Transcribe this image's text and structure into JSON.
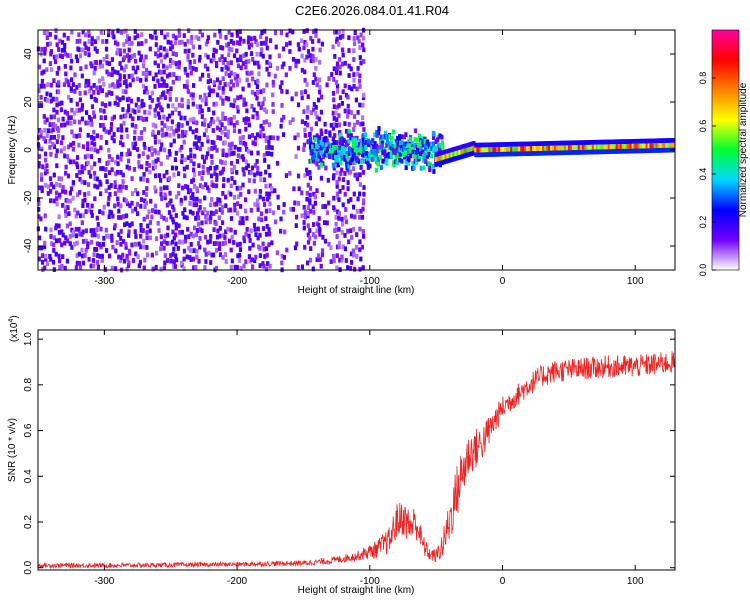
{
  "title": "C2E6.2026.084.01.41.R04",
  "chart_data": [
    {
      "type": "heatmap",
      "title": "C2E6.2026.084.01.41.R04",
      "xlabel": "Height of straight line (km)",
      "ylabel": "Frequency (Hz)",
      "xlim": [
        -350,
        130
      ],
      "ylim": [
        -50,
        50
      ],
      "xticks": [
        -300,
        -200,
        -100,
        0,
        100
      ],
      "xtick_labels": [
        "-300",
        "-200",
        "-100",
        "0",
        "100"
      ],
      "yticks": [
        -40,
        -20,
        0,
        20,
        40
      ],
      "ytick_labels": [
        "-40",
        "-20",
        "0",
        "20",
        "40"
      ],
      "colorbar": {
        "label": "Normalized spectral amplitude",
        "range": [
          0,
          1
        ],
        "ticks": [
          0.0,
          0.2,
          0.4,
          0.6,
          0.8
        ],
        "tick_labels": [
          "0.0",
          "0.2",
          "0.4",
          "0.6",
          "0.8"
        ],
        "colors": [
          "#ffffff",
          "#7000ff",
          "#0000ff",
          "#00d8ff",
          "#00ff30",
          "#ffff00",
          "#ff8000",
          "#ff0000",
          "#ff00a0"
        ]
      },
      "regions": [
        {
          "name": "noise",
          "x_range": [
            -350,
            -105
          ],
          "freq_range": [
            -50,
            50
          ],
          "amplitude": 0.12
        },
        {
          "name": "emerging-signal",
          "x_range": [
            -145,
            -45
          ],
          "freq_center": 0,
          "freq_spread": 10,
          "amplitude": 0.35
        },
        {
          "name": "carrier-transition",
          "x_range": [
            -50,
            -20
          ],
          "freq_range": [
            -4,
            1
          ],
          "amplitude": 0.8
        },
        {
          "name": "carrier",
          "x_range": [
            -20,
            130
          ],
          "freq_range": [
            0,
            2
          ],
          "amplitude": 0.9
        }
      ]
    },
    {
      "type": "line",
      "xlabel": "Height of straight line (km)",
      "ylabel": "SNR (10 * v/v)",
      "scale_label": "(x10",
      "scale_exponent": "4",
      "xlim": [
        -350,
        130
      ],
      "ylim": [
        -0.01,
        1.04
      ],
      "xticks": [
        -300,
        -200,
        -100,
        0,
        100
      ],
      "xtick_labels": [
        "-300",
        "-200",
        "-100",
        "0",
        "100"
      ],
      "yticks": [
        0.0,
        0.2,
        0.4,
        0.6,
        0.8,
        1.0
      ],
      "ytick_labels": [
        "0.0",
        "0.2",
        "0.4",
        "0.6",
        "0.8",
        "1.0"
      ],
      "series": [
        {
          "name": "SNR",
          "color": "#ee2222",
          "x": [
            -350,
            -300,
            -250,
            -200,
            -150,
            -130,
            -110,
            -95,
            -85,
            -80,
            -75,
            -70,
            -65,
            -60,
            -55,
            -50,
            -45,
            -40,
            -35,
            -30,
            -25,
            -20,
            -15,
            -10,
            -5,
            0,
            10,
            20,
            30,
            40,
            60,
            80,
            100,
            115,
            130
          ],
          "values": [
            0.01,
            0.01,
            0.012,
            0.015,
            0.02,
            0.03,
            0.05,
            0.08,
            0.12,
            0.2,
            0.22,
            0.18,
            0.2,
            0.1,
            0.06,
            0.05,
            0.1,
            0.2,
            0.32,
            0.42,
            0.5,
            0.52,
            0.55,
            0.6,
            0.65,
            0.7,
            0.75,
            0.8,
            0.84,
            0.86,
            0.87,
            0.88,
            0.88,
            0.89,
            0.9
          ],
          "noise": [
            0.01,
            0.01,
            0.01,
            0.01,
            0.012,
            0.015,
            0.02,
            0.04,
            0.06,
            0.08,
            0.08,
            0.08,
            0.08,
            0.05,
            0.03,
            0.03,
            0.06,
            0.1,
            0.12,
            0.12,
            0.1,
            0.09,
            0.08,
            0.07,
            0.06,
            0.05,
            0.05,
            0.05,
            0.05,
            0.05,
            0.05,
            0.05,
            0.05,
            0.05,
            0.05
          ]
        }
      ]
    }
  ]
}
